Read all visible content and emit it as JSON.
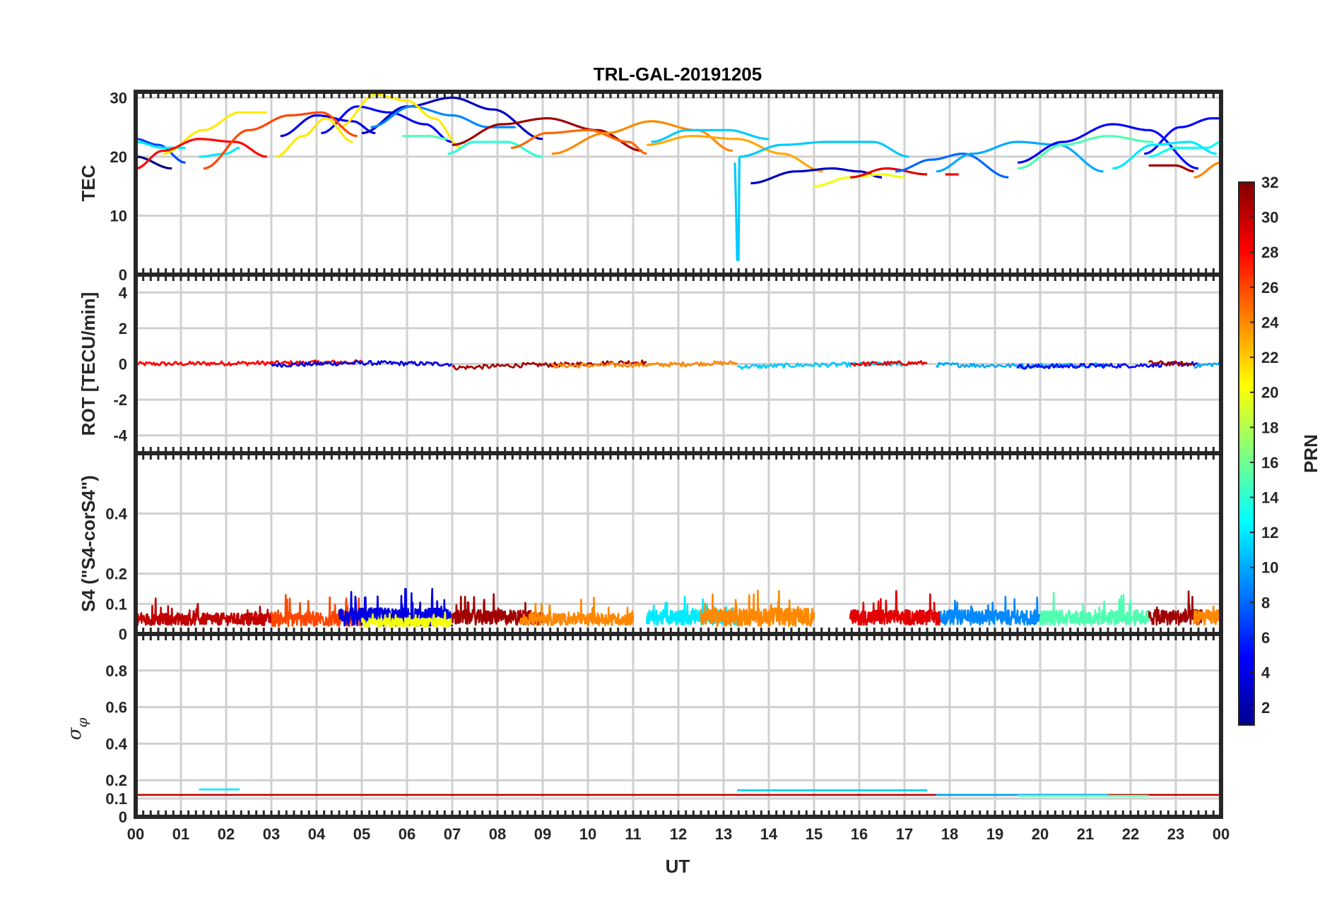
{
  "chart_data": {
    "type": "line",
    "title": "TRL-GAL-20191205",
    "xlabel": "UT",
    "x_ticks": [
      "00",
      "01",
      "02",
      "03",
      "04",
      "05",
      "06",
      "07",
      "08",
      "09",
      "10",
      "11",
      "12",
      "13",
      "14",
      "15",
      "16",
      "17",
      "18",
      "19",
      "20",
      "21",
      "22",
      "23",
      "00"
    ],
    "x_range_hours": [
      0,
      24
    ],
    "grid": true,
    "colormap": "jet",
    "colorbar": {
      "label": "PRN",
      "range": [
        1,
        32
      ],
      "ticks": [
        "2",
        "4",
        "6",
        "8",
        "10",
        "12",
        "14",
        "16",
        "18",
        "20",
        "22",
        "24",
        "26",
        "28",
        "30",
        "32"
      ],
      "colors": [
        "#00008f",
        "#0000ff",
        "#0080ff",
        "#00ffff",
        "#80ff80",
        "#ffff00",
        "#ff8000",
        "#ff0000",
        "#800000"
      ]
    },
    "panels": [
      {
        "ylabel": "TEC",
        "ylim": [
          0,
          31
        ],
        "y_ticks": [
          "0",
          "10",
          "20",
          "30"
        ],
        "series": [
          {
            "prn": 1,
            "x": [
              0.0,
              0.8
            ],
            "y": [
              20,
              18
            ]
          },
          {
            "prn": 4,
            "x": [
              3.2,
              4.0,
              4.8,
              5.3
            ],
            "y": [
              23.5,
              27,
              26,
              24
            ]
          },
          {
            "prn": 5,
            "x": [
              4.1,
              4.9,
              5.6,
              6.4,
              7.0
            ],
            "y": [
              24,
              28.5,
              27.5,
              25.5,
              22.5
            ]
          },
          {
            "prn": 3,
            "x": [
              5.0,
              6.0,
              7.0,
              7.9,
              9.0
            ],
            "y": [
              24,
              28.5,
              30,
              28,
              23
            ]
          },
          {
            "prn": 7,
            "x": [
              0.0,
              0.5,
              1.1
            ],
            "y": [
              23,
              22,
              19
            ]
          },
          {
            "prn": 9,
            "x": [
              5.2,
              6.1,
              7.0,
              7.8,
              8.4
            ],
            "y": [
              25,
              28.5,
              27,
              25,
              25
            ]
          },
          {
            "prn": 12,
            "x": [
              0.0,
              0.6,
              1.1
            ],
            "y": [
              22.5,
              21.5,
              21.5
            ]
          },
          {
            "prn": 12,
            "x": [
              1.4,
              2.0,
              2.3
            ],
            "y": [
              20,
              20.5,
              21.5
            ]
          },
          {
            "prn": 21,
            "x": [
              0.6,
              1.5,
              2.3,
              2.9
            ],
            "y": [
              20.5,
              24.5,
              27.5,
              27.5
            ]
          },
          {
            "prn": 21,
            "x": [
              3.1,
              3.7,
              4.2,
              4.8
            ],
            "y": [
              20,
              23.5,
              26.5,
              22.5
            ]
          },
          {
            "prn": 21,
            "x": [
              4.5,
              5.3,
              6.0,
              6.6,
              7.2
            ],
            "y": [
              25,
              30.5,
              29.5,
              26.5,
              21.5
            ]
          },
          {
            "prn": 15,
            "x": [
              5.9,
              6.5,
              6.9
            ],
            "y": [
              23.5,
              23.5,
              23
            ]
          },
          {
            "prn": 14,
            "x": [
              6.9,
              7.5,
              8.2,
              9.0
            ],
            "y": [
              20.5,
              22.5,
              22.5,
              20
            ]
          },
          {
            "prn": 28,
            "x": [
              0.0,
              0.6,
              1.4,
              2.2,
              2.9
            ],
            "y": [
              18,
              21,
              23,
              22.5,
              20
            ]
          },
          {
            "prn": 26,
            "x": [
              1.5,
              2.5,
              3.4,
              4.1,
              4.9
            ],
            "y": [
              18,
              24.5,
              27,
              27.5,
              23.5
            ]
          },
          {
            "prn": 31,
            "x": [
              7.0,
              8.1,
              9.1,
              10.2,
              11.2
            ],
            "y": [
              22,
              25.5,
              26.5,
              24.5,
              21
            ]
          },
          {
            "prn": 25,
            "x": [
              8.3,
              9.1,
              10.0,
              10.9,
              11.3
            ],
            "y": [
              21.5,
              24,
              24.5,
              22.5,
              20.5
            ]
          },
          {
            "prn": 24,
            "x": [
              9.2,
              10.4,
              11.4,
              12.4,
              13.2
            ],
            "y": [
              20.5,
              24,
              26,
              24.5,
              21
            ]
          },
          {
            "prn": 11,
            "x": [
              11.4,
              12.2,
              13.1,
              14.0
            ],
            "y": [
              22.5,
              24.5,
              24.5,
              23
            ]
          },
          {
            "prn": 23,
            "x": [
              11.3,
              12.3,
              13.3,
              14.3,
              15.2
            ],
            "y": [
              22,
              23.5,
              23,
              20.5,
              17.5
            ]
          },
          {
            "prn": 11,
            "x": [
              13.25,
              13.28,
              13.3,
              13.33,
              13.35
            ],
            "y": [
              19,
              10,
              2.5,
              2.5,
              20
            ]
          },
          {
            "prn": 11,
            "x": [
              13.35,
              14.3,
              15.3,
              16.3,
              17.1
            ],
            "y": [
              20,
              22,
              22.5,
              22.5,
              20
            ]
          },
          {
            "prn": 3,
            "x": [
              13.6,
              14.6,
              15.4,
              16.0,
              16.5
            ],
            "y": [
              15.5,
              17.5,
              18,
              17.5,
              16.5
            ]
          },
          {
            "prn": 20,
            "x": [
              15.0,
              15.8,
              16.5,
              17.0
            ],
            "y": [
              15,
              16.5,
              17,
              16.5
            ]
          },
          {
            "prn": 29,
            "x": [
              15.8,
              16.6,
              17.5
            ],
            "y": [
              16.5,
              18,
              17
            ]
          },
          {
            "prn": 8,
            "x": [
              16.8,
              17.6,
              18.3,
              19.3
            ],
            "y": [
              17.5,
              19.5,
              20.5,
              16.5
            ]
          },
          {
            "prn": 10,
            "x": [
              17.7,
              18.5,
              19.5,
              20.4,
              21.4
            ],
            "y": [
              17.5,
              20.5,
              22.5,
              22,
              17.5
            ]
          },
          {
            "prn": 28,
            "x": [
              17.9,
              18.2
            ],
            "y": [
              17,
              17
            ]
          },
          {
            "prn": 5,
            "x": [
              19.5,
              20.5,
              21.6,
              22.4,
              23.5
            ],
            "y": [
              19,
              22.5,
              25.5,
              24.5,
              18
            ]
          },
          {
            "prn": 15,
            "x": [
              19.5,
              20.5,
              21.5,
              22.5
            ],
            "y": [
              18,
              22,
              23.5,
              22.5
            ]
          },
          {
            "prn": 5,
            "x": [
              22.3,
              23.1,
              23.8,
              24.0
            ],
            "y": [
              20.5,
              25,
              26.5,
              26.5
            ]
          },
          {
            "prn": 13,
            "x": [
              22.4,
              23.0,
              23.7,
              24.0
            ],
            "y": [
              20,
              21.5,
              21.5,
              22.5
            ]
          },
          {
            "prn": 12,
            "x": [
              21.6,
              22.5,
              23.3,
              23.9
            ],
            "y": [
              18,
              22,
              22.5,
              20.5
            ]
          },
          {
            "prn": 31,
            "x": [
              22.4,
              23.0,
              23.4
            ],
            "y": [
              18.5,
              18.5,
              17.5
            ]
          },
          {
            "prn": 24,
            "x": [
              23.4,
              24.0
            ],
            "y": [
              16.5,
              19
            ]
          }
        ]
      },
      {
        "ylabel": "ROT [TECU/min]",
        "ylim": [
          -5,
          5
        ],
        "y_ticks": [
          "-4",
          "-2",
          "0",
          "2",
          "4"
        ],
        "series": [
          {
            "prn": 28,
            "x": [
              0.0,
              3.0,
              5.0
            ],
            "y": [
              0.0,
              0.05,
              0.1
            ]
          },
          {
            "prn": 4,
            "x": [
              3.0,
              5.0,
              7.0
            ],
            "y": [
              -0.05,
              0.05,
              0.0
            ]
          },
          {
            "prn": 31,
            "x": [
              7.0,
              9.0,
              11.3
            ],
            "y": [
              -0.2,
              -0.05,
              0.1
            ]
          },
          {
            "prn": 24,
            "x": [
              9.2,
              11.3,
              13.3
            ],
            "y": [
              -0.1,
              -0.05,
              0.05
            ]
          },
          {
            "prn": 11,
            "x": [
              13.3,
              15.3,
              17.0
            ],
            "y": [
              -0.15,
              -0.05,
              0.0
            ]
          },
          {
            "prn": 29,
            "x": [
              15.8,
              17.5
            ],
            "y": [
              0.0,
              0.05
            ]
          },
          {
            "prn": 10,
            "x": [
              17.7,
              19.5,
              21.5
            ],
            "y": [
              -0.05,
              -0.1,
              -0.05
            ]
          },
          {
            "prn": 5,
            "x": [
              19.5,
              21.6,
              23.5
            ],
            "y": [
              -0.15,
              -0.1,
              0.0
            ]
          },
          {
            "prn": 31,
            "x": [
              22.4,
              23.4
            ],
            "y": [
              0.05,
              0.0
            ]
          },
          {
            "prn": 10,
            "x": [
              23.4,
              24.0
            ],
            "y": [
              -0.1,
              0.0
            ]
          }
        ]
      },
      {
        "ylabel": "S4 (\"S4-corS4\")",
        "ylim": [
          0,
          0.6
        ],
        "y_ticks": [
          "0",
          "0.1",
          "0.2",
          "0.4"
        ],
        "y_tick_values": [
          0,
          0.1,
          0.2,
          0.4
        ],
        "series": [
          {
            "prn": 30,
            "x_range": [
              0,
              3
            ],
            "base": 0.045,
            "spread": 0.04
          },
          {
            "prn": 26,
            "x_range": [
              3,
              5
            ],
            "base": 0.045,
            "spread": 0.05
          },
          {
            "prn": 4,
            "x_range": [
              4.5,
              7
            ],
            "base": 0.05,
            "spread": 0.06
          },
          {
            "prn": 20,
            "x_range": [
              5,
              7
            ],
            "base": 0.035,
            "spread": 0.03
          },
          {
            "prn": 31,
            "x_range": [
              7,
              9
            ],
            "base": 0.05,
            "spread": 0.05
          },
          {
            "prn": 24,
            "x_range": [
              8.5,
              11
            ],
            "base": 0.045,
            "spread": 0.04
          },
          {
            "prn": 12,
            "x_range": [
              11.3,
              13.3
            ],
            "base": 0.05,
            "spread": 0.05
          },
          {
            "prn": 24,
            "x_range": [
              12.5,
              15
            ],
            "base": 0.05,
            "spread": 0.06
          },
          {
            "prn": 29,
            "x_range": [
              15.8,
              17.8
            ],
            "base": 0.05,
            "spread": 0.05
          },
          {
            "prn": 9,
            "x_range": [
              17.8,
              20
            ],
            "base": 0.05,
            "spread": 0.05
          },
          {
            "prn": 15,
            "x_range": [
              20,
              22.4
            ],
            "base": 0.05,
            "spread": 0.05
          },
          {
            "prn": 31,
            "x_range": [
              22.4,
              23.6
            ],
            "base": 0.05,
            "spread": 0.05
          },
          {
            "prn": 24,
            "x_range": [
              23.4,
              24
            ],
            "base": 0.05,
            "spread": 0.05
          }
        ]
      },
      {
        "ylabel": "σφ",
        "ylim": [
          0,
          1
        ],
        "y_ticks": [
          "0",
          "0.1",
          "0.2",
          "0.4",
          "0.6",
          "0.8"
        ],
        "y_tick_values": [
          0,
          0.1,
          0.2,
          0.4,
          0.6,
          0.8
        ],
        "series": [
          {
            "prn": 30,
            "x": [
              0.0,
              24.0
            ],
            "y": [
              0.12,
              0.12
            ]
          },
          {
            "prn": 12,
            "x": [
              1.4,
              2.3
            ],
            "y": [
              0.15,
              0.15
            ]
          },
          {
            "prn": 11,
            "x": [
              13.3,
              17.5
            ],
            "y": [
              0.145,
              0.145
            ]
          },
          {
            "prn": 10,
            "x": [
              17.7,
              21.5
            ],
            "y": [
              0.12,
              0.12
            ]
          },
          {
            "prn": 15,
            "x": [
              19.5,
              22.4
            ],
            "y": [
              0.115,
              0.115
            ]
          }
        ]
      }
    ]
  }
}
